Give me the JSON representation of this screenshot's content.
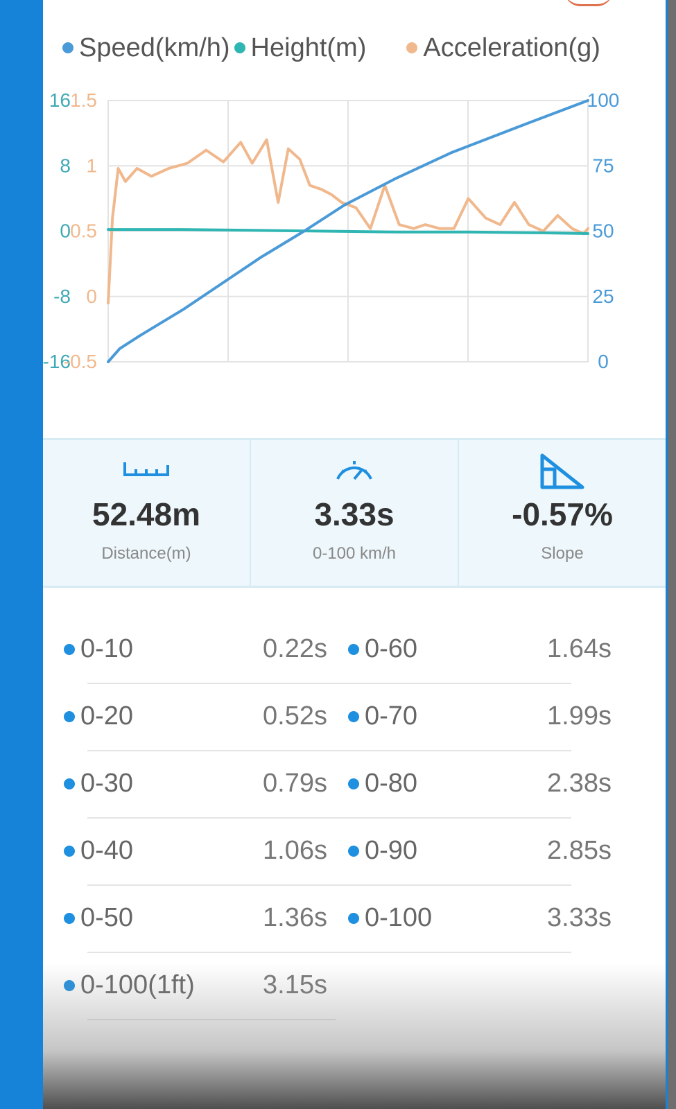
{
  "legend": [
    {
      "label": "Speed(km/h)",
      "color": "#4a9ad8"
    },
    {
      "label": "Height(m)",
      "color": "#2fb6b3"
    },
    {
      "label": "Acceleration(g)",
      "color": "#f0b88c"
    }
  ],
  "chart_data": {
    "type": "line",
    "x": [
      0,
      3.33
    ],
    "grid": true,
    "axes": {
      "height_ticks": [
        "16",
        "8",
        "0",
        "-8",
        "-16"
      ],
      "acceleration_ticks": [
        "1.5",
        "1",
        "0.5",
        "0",
        "-0.5"
      ],
      "speed_ticks": [
        "100",
        "75",
        "50",
        "25",
        "0"
      ],
      "height_range": [
        -16,
        16
      ],
      "acceleration_range": [
        -0.5,
        1.5
      ],
      "speed_range": [
        0,
        100
      ]
    },
    "series": [
      {
        "name": "Speed(km/h)",
        "axis": "right",
        "color": "#4a9ad8",
        "x": [
          0,
          0.08,
          0.22,
          0.52,
          0.79,
          1.06,
          1.36,
          1.64,
          1.99,
          2.38,
          2.85,
          3.33
        ],
        "values": [
          0,
          5,
          10,
          20,
          30,
          40,
          50,
          60,
          70,
          80,
          90,
          100
        ]
      },
      {
        "name": "Height(m)",
        "axis": "left-outer",
        "color": "#2fb6b3",
        "x": [
          0,
          0.5,
          1.0,
          1.5,
          2.0,
          2.5,
          3.0,
          3.33
        ],
        "values": [
          0.2,
          0.2,
          0.1,
          0.0,
          -0.1,
          -0.1,
          -0.2,
          -0.3
        ]
      },
      {
        "name": "Acceleration(g)",
        "axis": "left-inner",
        "color": "#f0b88c",
        "x": [
          0,
          0.03,
          0.07,
          0.12,
          0.2,
          0.3,
          0.42,
          0.55,
          0.68,
          0.8,
          0.92,
          1.0,
          1.1,
          1.18,
          1.25,
          1.33,
          1.4,
          1.48,
          1.55,
          1.62,
          1.72,
          1.82,
          1.92,
          2.02,
          2.12,
          2.2,
          2.3,
          2.4,
          2.5,
          2.62,
          2.72,
          2.82,
          2.92,
          3.02,
          3.12,
          3.22,
          3.3,
          3.33
        ],
        "values": [
          -0.05,
          0.6,
          0.98,
          0.88,
          0.98,
          0.92,
          0.98,
          1.02,
          1.12,
          1.03,
          1.18,
          1.02,
          1.2,
          0.72,
          1.13,
          1.05,
          0.85,
          0.82,
          0.78,
          0.72,
          0.68,
          0.52,
          0.85,
          0.55,
          0.52,
          0.55,
          0.52,
          0.52,
          0.75,
          0.6,
          0.55,
          0.72,
          0.55,
          0.5,
          0.62,
          0.52,
          0.48,
          0.52
        ]
      }
    ]
  },
  "stats": {
    "distance_value": "52.48m",
    "distance_label": "Distance(m)",
    "time_value": "3.33s",
    "time_label": "0-100 km/h",
    "slope_value": "-0.57%",
    "slope_label": "Slope"
  },
  "splits": {
    "rows": [
      {
        "left_label": "0-10",
        "left_time": "0.22s",
        "right_label": "0-60",
        "right_time": "1.64s"
      },
      {
        "left_label": "0-20",
        "left_time": "0.52s",
        "right_label": "0-70",
        "right_time": "1.99s"
      },
      {
        "left_label": "0-30",
        "left_time": "0.79s",
        "right_label": "0-80",
        "right_time": "2.38s"
      },
      {
        "left_label": "0-40",
        "left_time": "1.06s",
        "right_label": "0-90",
        "right_time": "2.85s"
      },
      {
        "left_label": "0-50",
        "left_time": "1.36s",
        "right_label": "0-100",
        "right_time": "3.33s"
      },
      {
        "left_label": "0-100(1ft)",
        "left_time": "3.15s"
      }
    ]
  }
}
